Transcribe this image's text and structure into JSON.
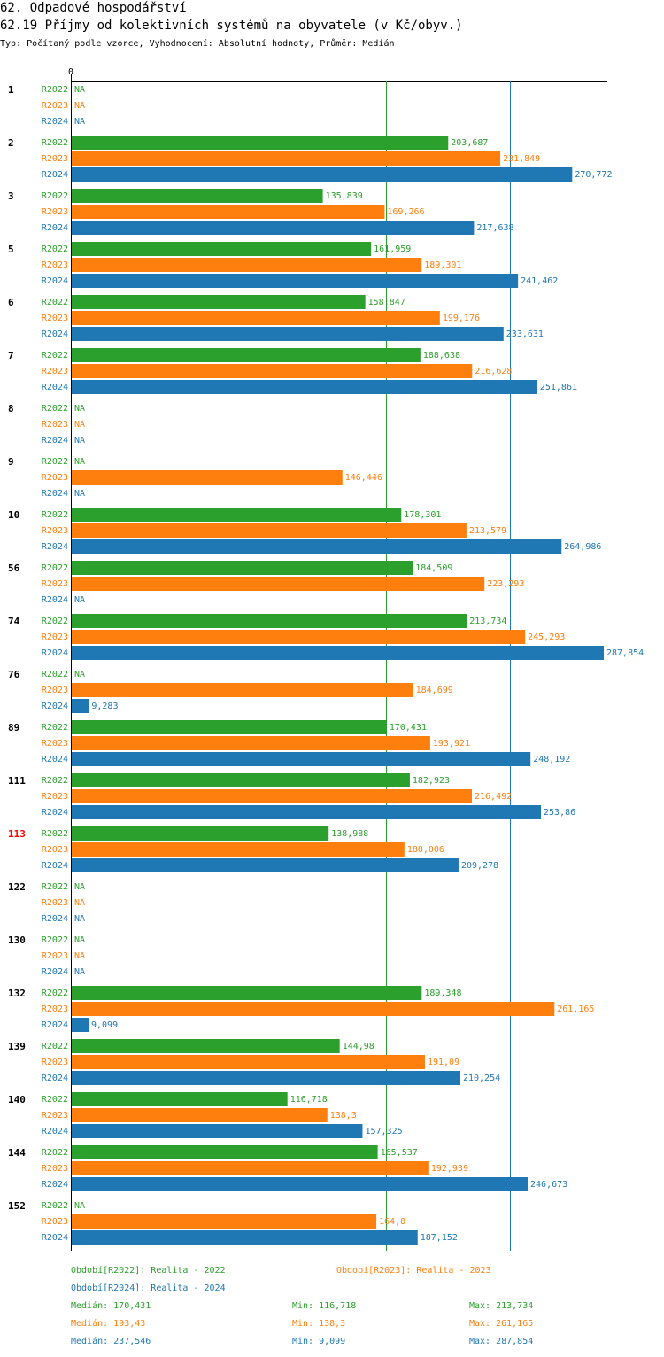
{
  "header": {
    "title": "62. Odpadové hospodářství",
    "subtitle": "62.19 Příjmy od kolektivních systémů na obyvatele (v Kč/obyv.)",
    "info": "Typ: Počítaný podle vzorce, Vyhodnocení: Absolutní hodnoty, Průměr: Medián"
  },
  "chart_data": {
    "type": "bar",
    "orientation": "horizontal",
    "axis_zero_label": "0",
    "xlim": [
      0,
      287.854
    ],
    "series": [
      {
        "name": "R2022",
        "color": "#2ca02c",
        "values": [
          null,
          203.687,
          135.839,
          161.959,
          158.847,
          188.638,
          null,
          null,
          178.301,
          184.509,
          213.734,
          null,
          170.431,
          182.923,
          138.988,
          null,
          null,
          189.348,
          144.98,
          116.718,
          165.537,
          null
        ],
        "labels": [
          "NA",
          "203,687",
          "135,839",
          "161,959",
          "158,847",
          "188,638",
          "NA",
          "NA",
          "178,301",
          "184,509",
          "213,734",
          "NA",
          "170,431",
          "182,923",
          "138,988",
          "NA",
          "NA",
          "189,348",
          "144,98",
          "116,718",
          "165,537",
          "NA"
        ]
      },
      {
        "name": "R2023",
        "color": "#ff7f0e",
        "values": [
          null,
          231.849,
          169.266,
          189.301,
          199.176,
          216.628,
          null,
          146.446,
          213.579,
          223.293,
          245.293,
          184.699,
          193.921,
          216.492,
          180.006,
          null,
          null,
          261.165,
          191.09,
          138.3,
          192.939,
          164.8
        ],
        "labels": [
          "NA",
          "231,849",
          "169,266",
          "189,301",
          "199,176",
          "216,628",
          "NA",
          "146,446",
          "213,579",
          "223,293",
          "245,293",
          "184,699",
          "193,921",
          "216,492",
          "180,006",
          "NA",
          "NA",
          "261,165",
          "191,09",
          "138,3",
          "192,939",
          "164,8"
        ]
      },
      {
        "name": "R2024",
        "color": "#1f77b4",
        "values": [
          null,
          270.772,
          217.638,
          241.462,
          233.631,
          251.861,
          null,
          null,
          264.986,
          null,
          287.854,
          9.283,
          248.192,
          253.86,
          209.278,
          null,
          null,
          9.099,
          210.254,
          157.325,
          246.673,
          187.152
        ],
        "labels": [
          "NA",
          "270,772",
          "217,638",
          "241,462",
          "233,631",
          "251,861",
          "NA",
          "NA",
          "264,986",
          "NA",
          "287,854",
          "9,283",
          "248,192",
          "253,86",
          "209,278",
          "NA",
          "NA",
          "9,099",
          "210,254",
          "157,325",
          "246,673",
          "187,152"
        ]
      }
    ],
    "categories": [
      "1",
      "2",
      "3",
      "5",
      "6",
      "7",
      "8",
      "9",
      "10",
      "56",
      "74",
      "76",
      "89",
      "111",
      "113",
      "122",
      "130",
      "132",
      "139",
      "140",
      "144",
      "152"
    ],
    "highlight_category": "113",
    "highlight_color": "#ff0000",
    "medians": [
      170.431,
      193.43,
      237.546
    ],
    "legend": [
      {
        "label": "Období[R2022]: Realita - 2022",
        "color": "#2ca02c"
      },
      {
        "label": "Období[R2023]: Realita - 2023",
        "color": "#ff7f0e"
      },
      {
        "label": "Období[R2024]: Realita - 2024",
        "color": "#1f77b4"
      }
    ],
    "stats": [
      {
        "median": "Medián: 170,431",
        "min": "Min: 116,718",
        "max": "Max: 213,734",
        "color": "#2ca02c"
      },
      {
        "median": "Medián: 193,43",
        "min": "Min: 138,3",
        "max": "Max: 261,165",
        "color": "#ff7f0e"
      },
      {
        "median": "Medián: 237,546",
        "min": "Min: 9,099",
        "max": "Max: 287,854",
        "color": "#1f77b4"
      }
    ]
  }
}
